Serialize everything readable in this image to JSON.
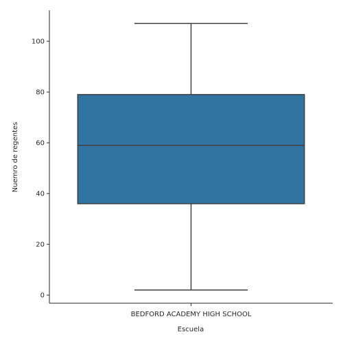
{
  "chart_data": {
    "type": "box",
    "xlabel": "Escuela",
    "ylabel": "Nuemro de regentes",
    "categories": [
      "BEDFORD ACADEMY HIGH SCHOOL"
    ],
    "boxes": [
      {
        "category": "BEDFORD ACADEMY HIGH SCHOOL",
        "min": 2,
        "q1": 36,
        "median": 59,
        "q3": 79,
        "max": 107
      }
    ],
    "yticks": [
      0,
      20,
      40,
      60,
      80,
      100
    ],
    "ytick_labels": [
      "0",
      "20",
      "40",
      "60",
      "80",
      "100"
    ],
    "ylim": [
      -3.2,
      112.2
    ],
    "grid": false,
    "colors": {
      "box_fill": "#3274a1",
      "line": "#3f3f3f",
      "axis": "#262626"
    }
  }
}
